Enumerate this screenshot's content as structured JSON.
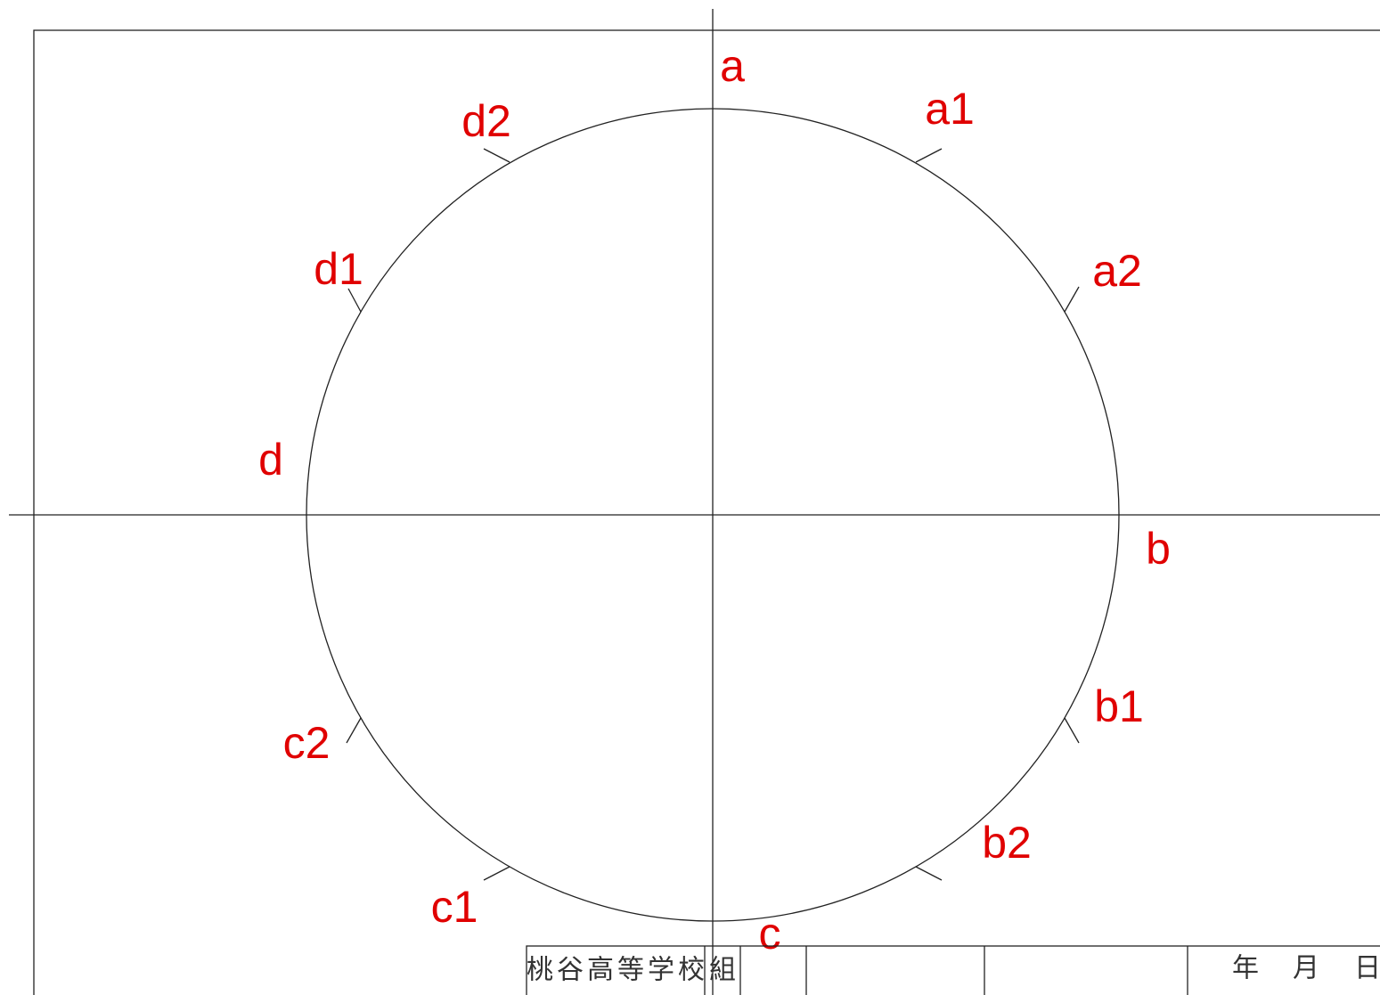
{
  "points": [
    {
      "label": "a"
    },
    {
      "label": "a1"
    },
    {
      "label": "a2"
    },
    {
      "label": "b"
    },
    {
      "label": "b1"
    },
    {
      "label": "b2"
    },
    {
      "label": "c"
    },
    {
      "label": "c1"
    },
    {
      "label": "c2"
    },
    {
      "label": "d"
    },
    {
      "label": "d1"
    },
    {
      "label": "d2"
    }
  ],
  "title_block": {
    "school": "桃谷高等学校",
    "class": "組",
    "year": "年",
    "month": "月",
    "day": "日"
  }
}
